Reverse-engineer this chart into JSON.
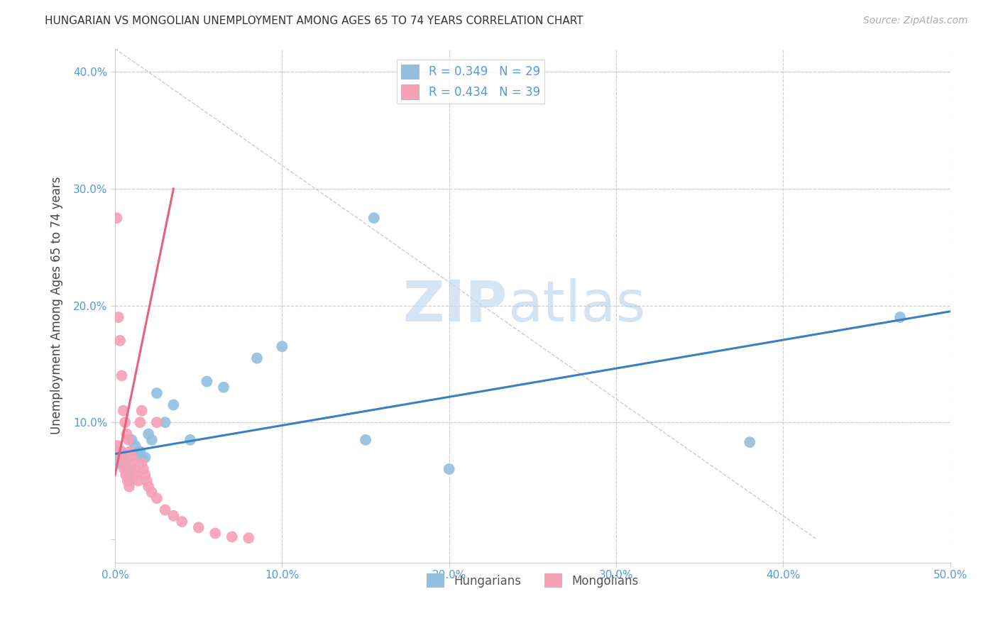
{
  "title": "HUNGARIAN VS MONGOLIAN UNEMPLOYMENT AMONG AGES 65 TO 74 YEARS CORRELATION CHART",
  "source": "Source: ZipAtlas.com",
  "ylabel": "Unemployment Among Ages 65 to 74 years",
  "xlim": [
    0.0,
    50.0
  ],
  "ylim": [
    -2.0,
    42.0
  ],
  "xticks": [
    0.0,
    10.0,
    20.0,
    30.0,
    40.0,
    50.0
  ],
  "yticks": [
    0.0,
    10.0,
    20.0,
    30.0,
    40.0
  ],
  "xticklabels": [
    "0.0%",
    "10.0%",
    "20.0%",
    "30.0%",
    "40.0%",
    "50.0%"
  ],
  "yticklabels": [
    "",
    "10.0%",
    "20.0%",
    "30.0%",
    "40.0%"
  ],
  "hun_color": "#91bfe0",
  "mon_color": "#f5a0b5",
  "hun_line_color": "#3a7fc1",
  "mon_line_color": "#e8607a",
  "hun_R": 0.349,
  "hun_N": 29,
  "mon_R": 0.434,
  "mon_N": 39,
  "hun_scatter_x": [
    0.2,
    0.3,
    0.4,
    0.5,
    0.6,
    0.7,
    0.8,
    0.9,
    1.0,
    1.2,
    1.4,
    1.5,
    1.6,
    1.8,
    2.0,
    2.2,
    2.5,
    3.0,
    3.5,
    4.5,
    5.5,
    6.5,
    8.5,
    10.0,
    15.0,
    20.0,
    38.0,
    47.0,
    15.5
  ],
  "hun_scatter_y": [
    6.5,
    7.0,
    7.5,
    7.0,
    6.5,
    6.0,
    5.5,
    5.0,
    8.5,
    8.0,
    7.5,
    7.5,
    7.0,
    7.0,
    9.0,
    8.5,
    12.5,
    10.0,
    11.5,
    8.5,
    13.5,
    13.0,
    15.5,
    16.5,
    8.5,
    6.0,
    8.3,
    19.0,
    27.5
  ],
  "mon_scatter_x": [
    0.1,
    0.2,
    0.3,
    0.4,
    0.5,
    0.6,
    0.7,
    0.8,
    0.9,
    1.0,
    1.1,
    1.2,
    1.3,
    1.4,
    1.5,
    1.6,
    1.7,
    1.8,
    1.9,
    2.0,
    2.2,
    2.5,
    3.0,
    3.5,
    4.0,
    5.0,
    6.0,
    7.0,
    8.0,
    0.15,
    0.25,
    0.35,
    0.45,
    0.55,
    0.65,
    0.75,
    0.85,
    1.6,
    2.5
  ],
  "mon_scatter_y": [
    27.5,
    19.0,
    17.0,
    14.0,
    11.0,
    10.0,
    9.0,
    8.5,
    7.5,
    7.0,
    6.5,
    6.0,
    5.5,
    5.0,
    10.0,
    6.5,
    6.0,
    5.5,
    5.0,
    4.5,
    4.0,
    3.5,
    2.5,
    2.0,
    1.5,
    1.0,
    0.5,
    0.2,
    0.1,
    8.0,
    7.5,
    7.0,
    6.5,
    6.0,
    5.5,
    5.0,
    4.5,
    11.0,
    10.0
  ],
  "hun_line_x": [
    0.0,
    50.0
  ],
  "hun_line_y": [
    7.3,
    19.5
  ],
  "mon_line_x": [
    0.0,
    3.5
  ],
  "mon_line_y": [
    5.5,
    30.0
  ],
  "ref_line_x": [
    0.0,
    42.0
  ],
  "ref_line_y": [
    42.0,
    0.0
  ],
  "watermark_zip": "ZIP",
  "watermark_atlas": "atlas",
  "tick_color": "#5599dd",
  "label_color": "#444444",
  "grid_color": "#cccccc",
  "legend_edge_color": "#cccccc",
  "source_color": "#aaaaaa",
  "title_fontsize": 11,
  "source_fontsize": 10,
  "tick_fontsize": 11,
  "ylabel_fontsize": 12
}
